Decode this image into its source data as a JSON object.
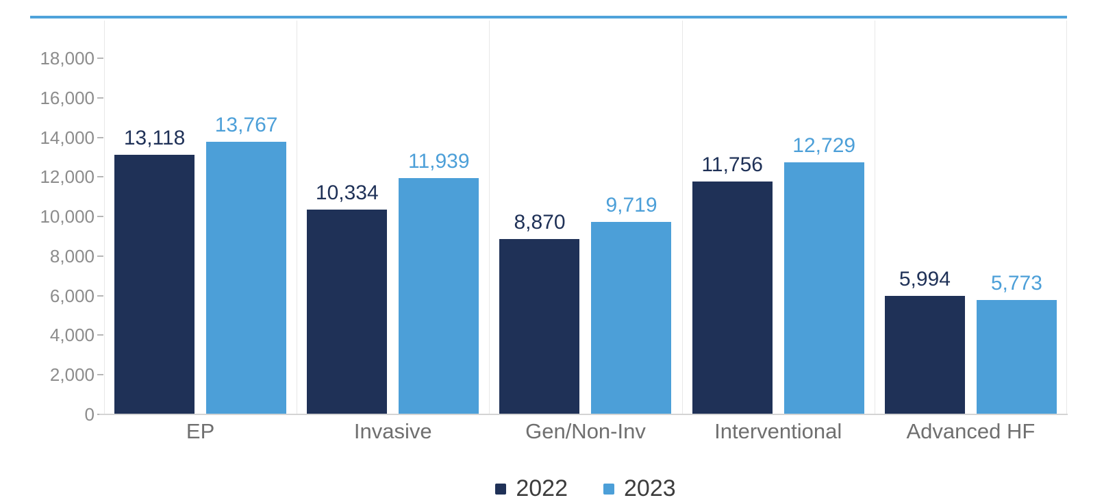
{
  "chart_data": {
    "type": "bar",
    "title": "",
    "categories": [
      "EP",
      "Invasive",
      "Gen/Non-Inv",
      "Interventional",
      "Advanced HF"
    ],
    "series": [
      {
        "name": "2022",
        "color": "#1F3157",
        "values": [
          13118,
          10334,
          8870,
          11756,
          5994
        ],
        "value_labels": [
          "13,118",
          "10,334",
          "8,870",
          "11,756",
          "5,994"
        ]
      },
      {
        "name": "2023",
        "color": "#4C9FD8",
        "values": [
          13767,
          11939,
          9719,
          12729,
          5773
        ],
        "value_labels": [
          "13,767",
          "11,939",
          "9,719",
          "12,729",
          "5,773"
        ]
      }
    ],
    "ylim": [
      0,
      18000
    ],
    "ytick_interval": 2000,
    "ytick_labels": [
      "0",
      "2,000",
      "4,000",
      "6,000",
      "8,000",
      "10,000",
      "12,000",
      "14,000",
      "16,000",
      "18,000"
    ],
    "grid": "vertical category separators only, no horizontal gridlines",
    "legend_position": "bottom-center"
  },
  "colors": {
    "accent_line": "#4FA3DA",
    "grid_line": "#E7E7E7",
    "axis_line": "#D4D4D4",
    "tick_mark": "#B5B5B5",
    "ytick_text": "#8C8C8C",
    "xtick_text": "#6F6F6F",
    "legend_text": "#3C3C3C",
    "background": "#FFFFFF"
  }
}
